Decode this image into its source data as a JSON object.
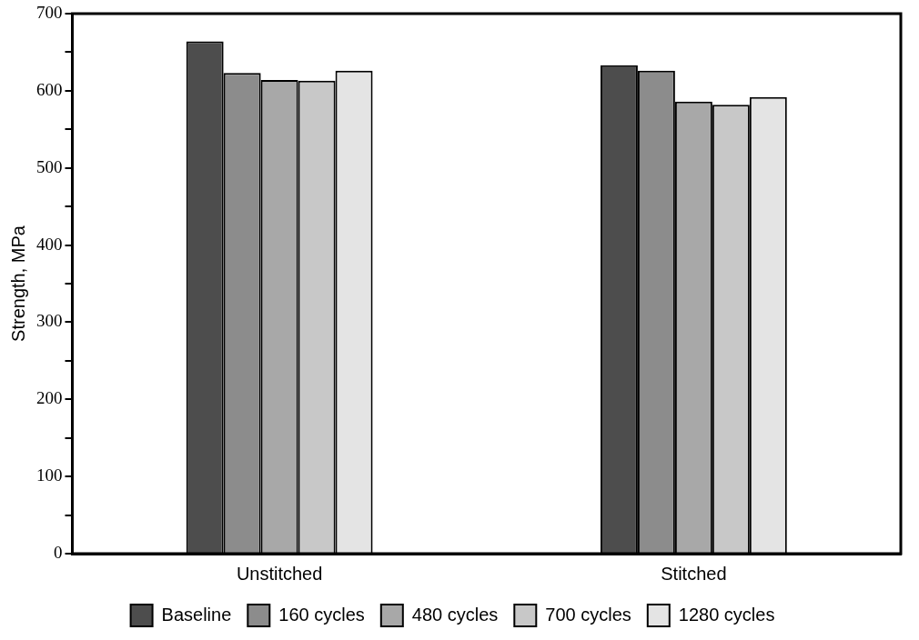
{
  "chart_data": {
    "type": "bar",
    "ylabel": "Strength, MPa",
    "categories": [
      "Unstitched",
      "Stitched"
    ],
    "series": [
      {
        "name": "Baseline",
        "color": "#4d4d4d",
        "values": [
          664,
          633
        ]
      },
      {
        "name": "160 cycles",
        "color": "#8c8c8c",
        "values": [
          623,
          626
        ]
      },
      {
        "name": "480 cycles",
        "color": "#a8a8a8",
        "values": [
          614,
          586
        ]
      },
      {
        "name": "700 cycles",
        "color": "#c8c8c8",
        "values": [
          613,
          582
        ]
      },
      {
        "name": "1280 cycles",
        "color": "#e4e4e4",
        "values": [
          626,
          592
        ]
      }
    ],
    "ylim": [
      0,
      700
    ],
    "yticks": [
      0,
      {
        "value": 50,
        "label": null
      },
      100,
      {
        "value": 150,
        "label": null
      },
      200,
      {
        "value": 250,
        "label": null
      },
      300,
      {
        "value": 350,
        "label": null
      },
      400,
      {
        "value": 450,
        "label": null
      },
      500,
      {
        "value": 550,
        "label": null
      },
      600,
      {
        "value": 650,
        "label": null
      },
      700
    ],
    "grid": false,
    "legend": "bottom"
  }
}
